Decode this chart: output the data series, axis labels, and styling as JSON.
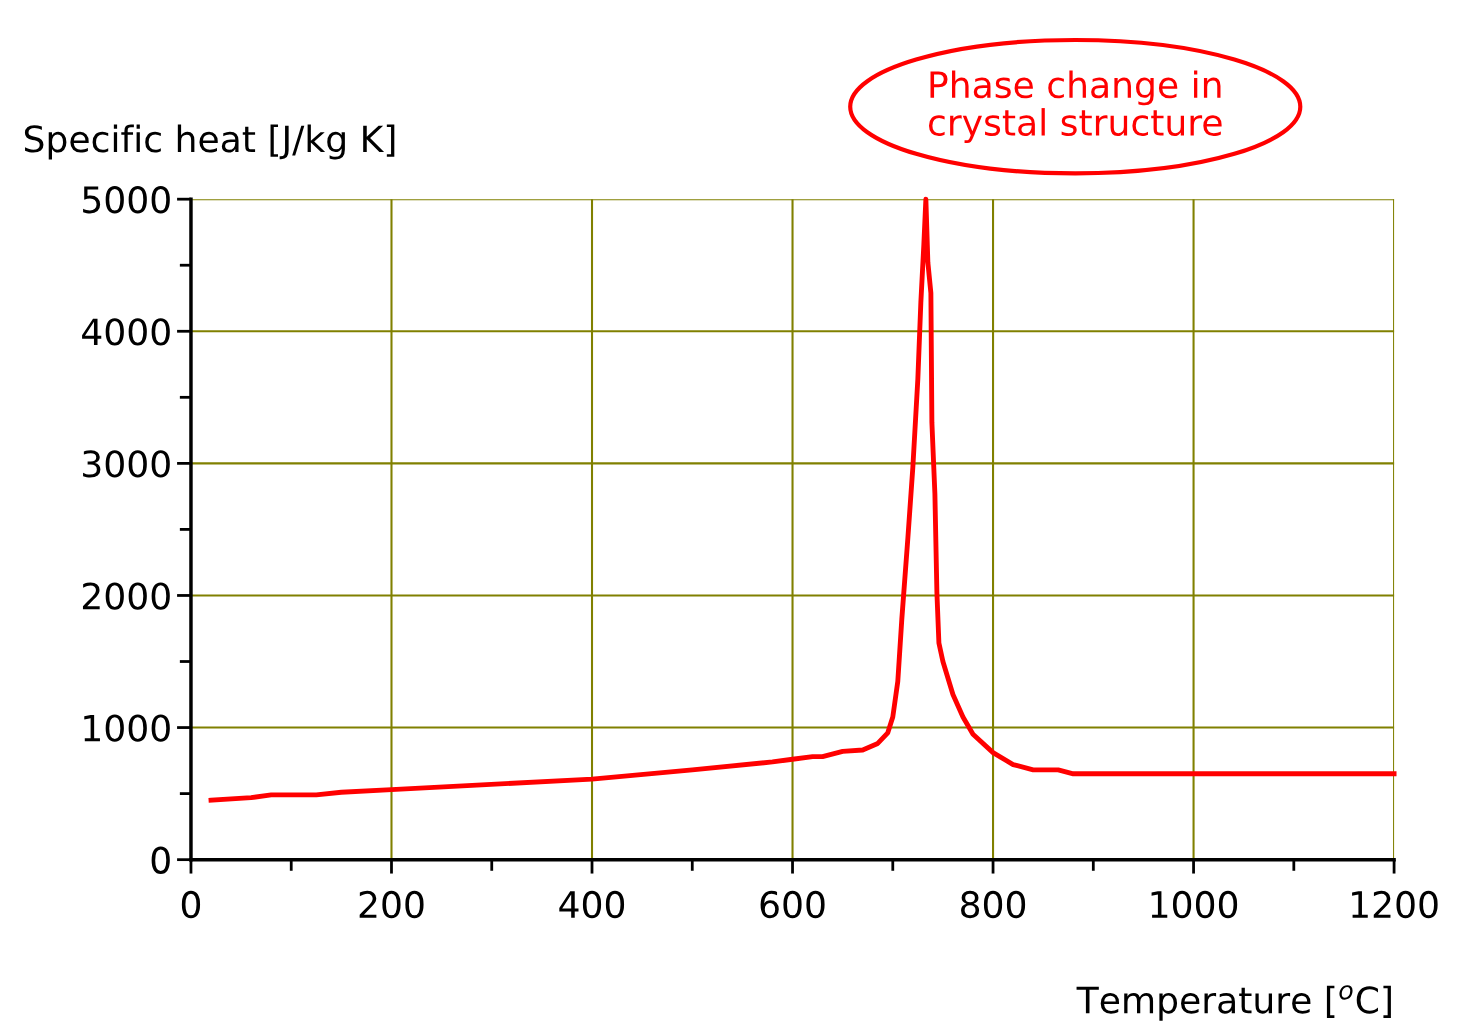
{
  "chart_data": {
    "type": "line",
    "ylabel": "Specific heat [J/kg K]",
    "xlabel": "Temperature [$^{o}$C]",
    "xlim": [
      0,
      1200
    ],
    "ylim": [
      0,
      5000
    ],
    "xticks": [
      0,
      {
        "value": 100,
        "label": null
      },
      200,
      {
        "value": 300,
        "label": null
      },
      400,
      {
        "value": 500,
        "label": null
      },
      600,
      {
        "value": 700,
        "label": null
      },
      800,
      {
        "value": 900,
        "label": null
      },
      1000,
      {
        "value": 1100,
        "label": null
      },
      1200
    ],
    "yticks": [
      0,
      {
        "value": 500,
        "label": null
      },
      1000,
      {
        "value": 1500,
        "label": null
      },
      2000,
      {
        "value": 2500,
        "label": null
      },
      3000,
      {
        "value": 3500,
        "label": null
      },
      4000,
      {
        "value": 4500,
        "label": null
      },
      5000
    ],
    "grid": true,
    "marker": "none",
    "line_style": "solid",
    "annotations": [
      "Phase change in\ncrystal structure"
    ],
    "series": [
      {
        "color": "#ff0000",
        "x": [
          20,
          60,
          80,
          125,
          150,
          200,
          400,
          500,
          580,
          600,
          620,
          630,
          650,
          670,
          685,
          695,
          700,
          705,
          709,
          715,
          720,
          725,
          728,
          731,
          733,
          735,
          738,
          739,
          742,
          744,
          746,
          750,
          760,
          770,
          780,
          800,
          820,
          840,
          865,
          880,
          1200
        ],
        "values": [
          450,
          470,
          490,
          490,
          510,
          530,
          610,
          680,
          740,
          760,
          780,
          780,
          820,
          830,
          880,
          960,
          1080,
          1350,
          1820,
          2430,
          2970,
          3640,
          4220,
          4660,
          5000,
          4520,
          4290,
          3310,
          2770,
          2020,
          1640,
          1500,
          1250,
          1080,
          950,
          810,
          720,
          680,
          680,
          650,
          650
        ]
      }
    ]
  }
}
